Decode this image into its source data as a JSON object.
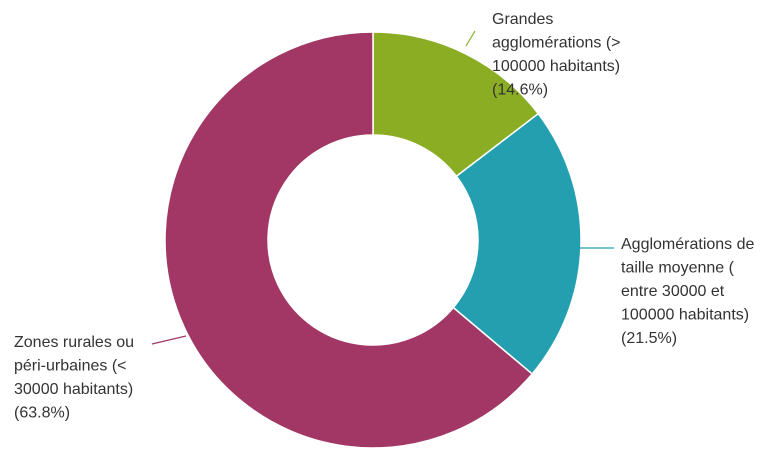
{
  "chart_data": {
    "type": "pie",
    "donut": true,
    "title": "",
    "slices": [
      {
        "lines": [
          "Grandes",
          "agglomérations (>",
          "100000 habitants)",
          "(14.6%)"
        ],
        "value": 14.6,
        "color": "#8aad24"
      },
      {
        "lines": [
          "Agglomérations de",
          "taille moyenne (",
          "entre 30000 et",
          "100000 habitants)",
          "(21.5%)"
        ],
        "value": 21.5,
        "color": "#239fb0"
      },
      {
        "lines": [
          "Zones rurales ou",
          "péri-urbaines (<",
          "30000 habitants)",
          "(63.8%)"
        ],
        "value": 63.8,
        "color": "#a23766"
      }
    ]
  }
}
